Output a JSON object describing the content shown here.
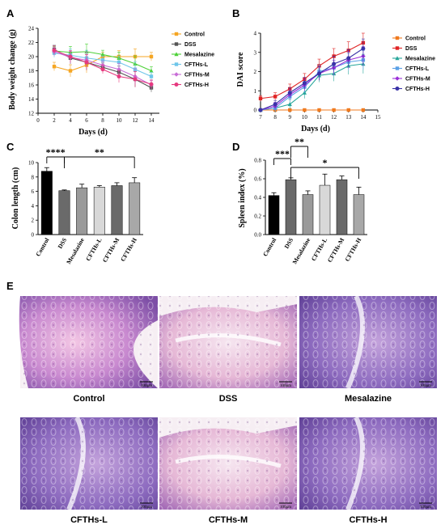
{
  "panel_labels": {
    "a": "A",
    "b": "B",
    "c": "C",
    "d": "D",
    "e": "E"
  },
  "colors": {
    "Control": "#f5a623",
    "DSS": "#555555",
    "Mesalazine": "#4cd137",
    "CFTHs-L": "#6ec6ea",
    "CFTHs-M": "#c86dd7",
    "CFTHs-H": "#e6397f",
    "B_Control": "#f07a1e",
    "B_DSS": "#e02424",
    "B_Mesalazine": "#26a69a",
    "B_CFTHs-L": "#5aa0e6",
    "B_CFTHs-M": "#9b30d9",
    "B_CFTHs-H": "#3a32a8"
  },
  "chart_data": [
    {
      "type": "line",
      "panel": "A",
      "x": [
        2,
        4,
        6,
        8,
        10,
        12,
        14
      ],
      "xlabel": "Days (d)",
      "ylabel": "Body weight change (g)",
      "xticks": [
        0,
        2,
        4,
        6,
        8,
        10,
        12,
        14
      ],
      "xlim": [
        0,
        15
      ],
      "yticks": [
        12,
        14,
        16,
        18,
        20,
        22,
        24
      ],
      "ylim": [
        12,
        24
      ],
      "legend": [
        "Control",
        "DSS",
        "Mesalazine",
        "CFTHs-L",
        "CFTHs-M",
        "CFTHs-H"
      ],
      "series": [
        {
          "name": "Control",
          "values": [
            18.6,
            18.0,
            18.8,
            20.0,
            20.0,
            20.0,
            20.0
          ]
        },
        {
          "name": "DSS",
          "values": [
            21.0,
            19.8,
            19.2,
            18.5,
            17.8,
            16.8,
            15.6
          ]
        },
        {
          "name": "Mesalazine",
          "values": [
            20.8,
            20.6,
            20.7,
            20.3,
            19.8,
            19.0,
            18.0
          ]
        },
        {
          "name": "CFTHs-L",
          "values": [
            20.5,
            20.2,
            19.8,
            19.5,
            19.2,
            18.2,
            17.2
          ]
        },
        {
          "name": "CFTHs-M",
          "values": [
            20.7,
            19.9,
            19.5,
            18.8,
            18.2,
            17.2,
            16.0
          ]
        },
        {
          "name": "CFTHs-H",
          "values": [
            20.9,
            20.0,
            19.2,
            18.2,
            17.2,
            16.8,
            16.1
          ]
        }
      ]
    },
    {
      "type": "line",
      "panel": "B",
      "x": [
        7,
        8,
        9,
        10,
        11,
        12,
        13,
        14
      ],
      "xlabel": "Days (d)",
      "ylabel": "DAI score",
      "xticks": [
        7,
        8,
        9,
        10,
        11,
        12,
        13,
        14,
        15
      ],
      "xlim": [
        7,
        15
      ],
      "yticks": [
        0,
        1,
        2,
        3,
        4
      ],
      "ylim": [
        0,
        4
      ],
      "legend": [
        "Control",
        "DSS",
        "Mesalazine",
        "CFTHs-L",
        "CFTHs-M",
        "CFTHs-H"
      ],
      "series": [
        {
          "name": "Control",
          "values": [
            0,
            0,
            0,
            0,
            0,
            0,
            0,
            0
          ]
        },
        {
          "name": "DSS",
          "values": [
            0.6,
            0.7,
            1.1,
            1.6,
            2.3,
            2.8,
            3.1,
            3.5
          ]
        },
        {
          "name": "Mesalazine",
          "values": [
            0,
            0.1,
            0.3,
            0.9,
            1.8,
            1.9,
            2.3,
            2.4
          ]
        },
        {
          "name": "CFTHs-L",
          "values": [
            0,
            0.1,
            0.7,
            1.2,
            2.0,
            2.2,
            2.5,
            2.6
          ]
        },
        {
          "name": "CFTHs-M",
          "values": [
            0,
            0.2,
            0.8,
            1.3,
            1.9,
            2.2,
            2.6,
            2.8
          ]
        },
        {
          "name": "CFTHs-H",
          "values": [
            0,
            0.3,
            0.9,
            1.4,
            1.9,
            2.4,
            2.7,
            3.2
          ]
        }
      ]
    },
    {
      "type": "bar",
      "panel": "C",
      "categories": [
        "Control",
        "DSS",
        "Mesalazine",
        "CFTHs-L",
        "CFTHs-M",
        "CFTHs-H"
      ],
      "values": [
        8.8,
        6.1,
        6.5,
        6.6,
        6.8,
        7.2
      ],
      "errors": [
        0.5,
        0.1,
        0.5,
        0.2,
        0.4,
        0.7
      ],
      "colors": [
        "#000000",
        "#6a6a6a",
        "#9a9a9a",
        "#d8d8d8",
        "#6a6a6a",
        "#a8a8a8"
      ],
      "ylabel": "Colon length (cm)",
      "yticks": [
        0,
        2,
        4,
        6,
        8,
        10
      ],
      "ylim": [
        0,
        10
      ],
      "significance": [
        {
          "text": "****",
          "from": "Control",
          "to": "DSS"
        },
        {
          "text": "**",
          "from": "DSS",
          "to": "CFTHs-H"
        }
      ]
    },
    {
      "type": "bar",
      "panel": "D",
      "categories": [
        "Control",
        "DSS",
        "Mesalazine",
        "CFTHs-L",
        "CFTHs-M",
        "CFTHs-H"
      ],
      "values": [
        0.42,
        0.59,
        0.43,
        0.53,
        0.59,
        0.43
      ],
      "errors": [
        0.03,
        0.02,
        0.04,
        0.12,
        0.04,
        0.08
      ],
      "colors": [
        "#000000",
        "#6a6a6a",
        "#9a9a9a",
        "#d8d8d8",
        "#6a6a6a",
        "#a8a8a8"
      ],
      "ylabel": "Spleen index (%)",
      "yticks": [
        0.0,
        0.2,
        0.4,
        0.6,
        0.8
      ],
      "ylim": [
        0,
        0.8
      ],
      "significance": [
        {
          "text": "***",
          "from": "Control",
          "to": "DSS"
        },
        {
          "text": "**",
          "from": "DSS",
          "to": "Mesalazine"
        },
        {
          "text": "*",
          "from": "DSS",
          "to": "CFTHs-H"
        }
      ]
    }
  ],
  "histology": {
    "scale_bar": "100μm",
    "panels": [
      {
        "caption": "Control",
        "style": "normal"
      },
      {
        "caption": "DSS",
        "style": "damaged"
      },
      {
        "caption": "Mesalazine",
        "style": "dense"
      },
      {
        "caption": "CFTHs-L",
        "style": "dense"
      },
      {
        "caption": "CFTHs-M",
        "style": "damaged"
      },
      {
        "caption": "CFTHs-H",
        "style": "dense"
      }
    ]
  }
}
